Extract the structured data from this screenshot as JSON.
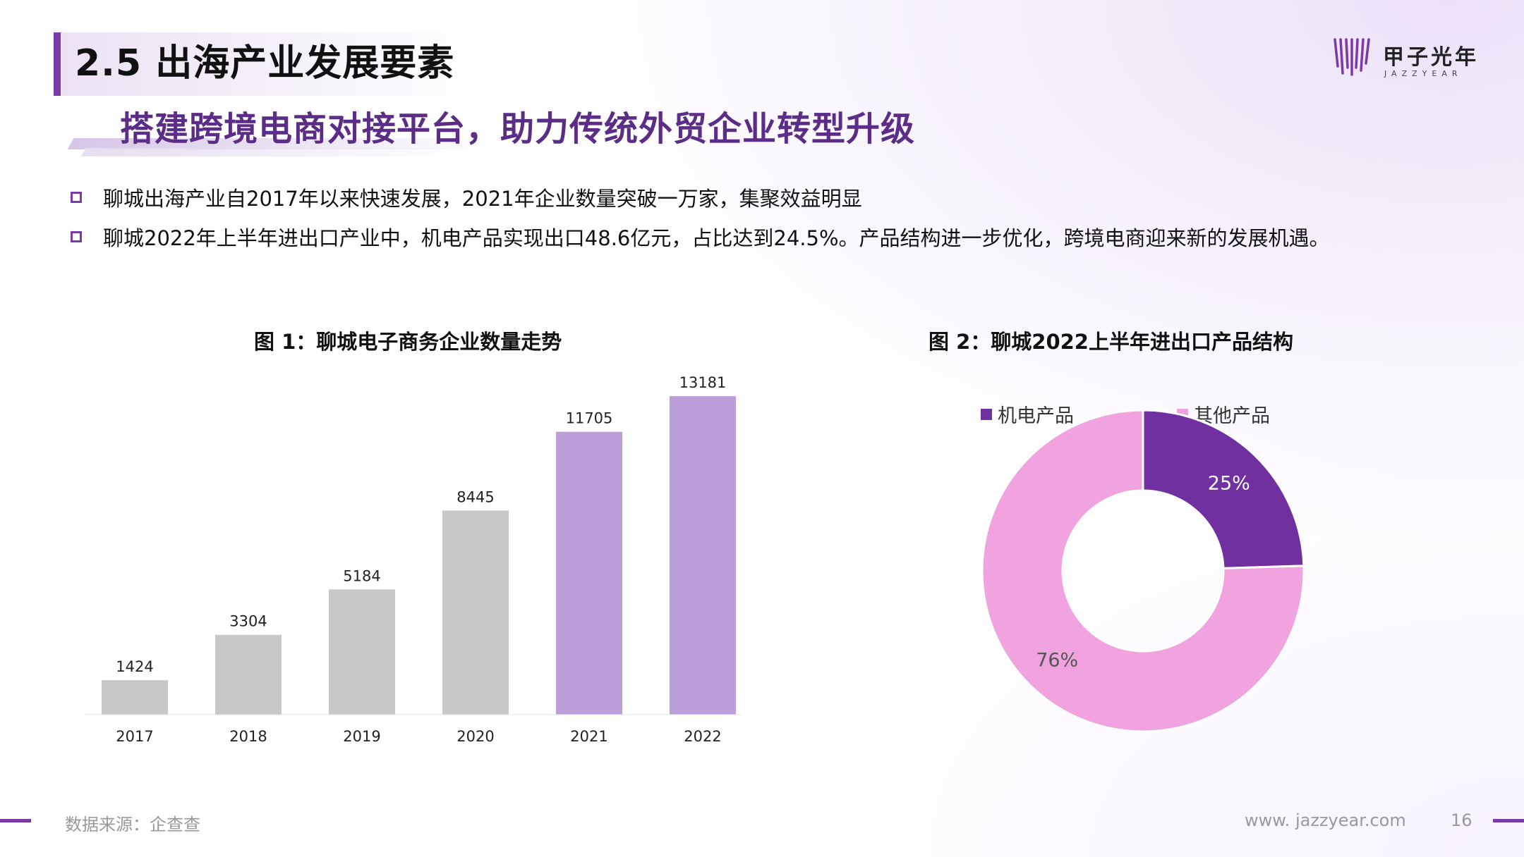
{
  "header": {
    "title": "2.5 出海产业发展要素",
    "subtitle": "搭建跨境电商对接平台，助力传统外贸企业转型升级"
  },
  "logo": {
    "name": "甲子光年",
    "sub": "JAZZYEAR",
    "color": "#7a3aa8"
  },
  "bullets": [
    {
      "text": "聊城出海产业自2017年以来快速发展，2021年企业数量突破一万家，集聚效益明显"
    },
    {
      "text": "聊城2022年上半年进出口产业中，机电产品实现出口48.6亿元，占比达到24.5%。产品结构进一步优化，跨境电商迎来新的发展机遇。"
    }
  ],
  "charts": {
    "bar_title": "图 1：聊城电子商务企业数量走势",
    "donut_title": "图 2：聊城2022上半年进出口产品结构"
  },
  "chart_data": [
    {
      "type": "bar",
      "title": "图 1：聊城电子商务企业数量走势",
      "categories": [
        "2017",
        "2018",
        "2019",
        "2020",
        "2021",
        "2022"
      ],
      "values": [
        1424,
        3304,
        5184,
        8445,
        11705,
        13181
      ],
      "colors": [
        "#c8c8c8",
        "#c8c8c8",
        "#c8c8c8",
        "#c8c8c8",
        "#bb9fd8",
        "#bb9fd8"
      ],
      "ylim": [
        0,
        14000
      ],
      "grid": false,
      "xlabel": "",
      "ylabel": ""
    },
    {
      "type": "pie",
      "title": "图 2：聊城2022上半年进出口产品结构",
      "labels": [
        "机电产品",
        "其他产品"
      ],
      "values": [
        24.5,
        75.5
      ],
      "display_labels": [
        "25%",
        "76%"
      ],
      "colors": [
        "#7030a0",
        "#f0a3df"
      ],
      "legend": "top"
    }
  ],
  "footer": {
    "source": "数据来源：企查查",
    "url": "www. jazzyear.com",
    "page": "16"
  }
}
